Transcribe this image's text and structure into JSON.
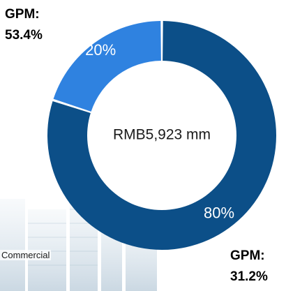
{
  "chart_data": {
    "type": "pie",
    "variant": "donut",
    "center_label": "RMB5,923 mm",
    "slices": [
      {
        "label": "80%",
        "value": 80,
        "color": "#0c4f88"
      },
      {
        "label": "20%",
        "value": 20,
        "color": "#2f82e0"
      }
    ],
    "annotations": {
      "top": {
        "line1": "GPM:",
        "line2": "53.4%"
      },
      "bottom": {
        "line1": "GPM:",
        "line2": "31.2%"
      }
    },
    "background_label": "Commercial"
  }
}
